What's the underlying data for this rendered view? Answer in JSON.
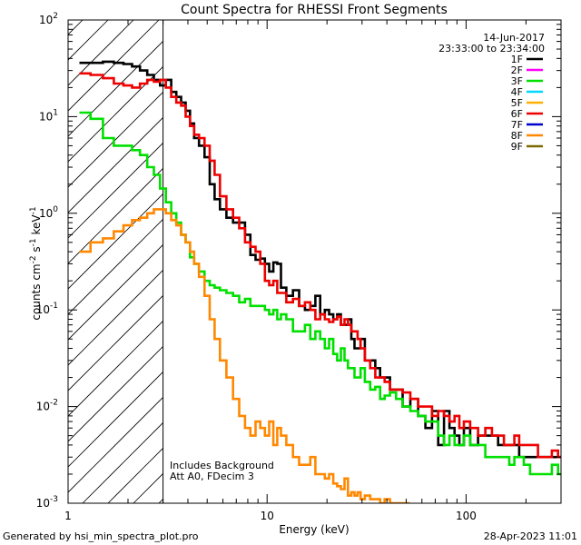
{
  "chart_data": {
    "type": "line",
    "title": "Count Spectra for RHESSI Front Segments",
    "xlabel": "Energy (keV)",
    "ylabel": "counts cm",
    "ylabel_sup1": "-2",
    "ylabel_mid": " s",
    "ylabel_sup2": "-1",
    "ylabel_end": " keV",
    "ylabel_sup3": "-1",
    "xscale": "log",
    "yscale": "log",
    "xlim": [
      1,
      300
    ],
    "ylim": [
      0.001,
      100
    ],
    "x_ticks": [
      {
        "v": 10,
        "label": "10"
      },
      {
        "v": 100,
        "label": "100"
      }
    ],
    "y_ticks": [
      {
        "v": 0.001,
        "base": "10",
        "exp": "-3"
      },
      {
        "v": 0.01,
        "base": "10",
        "exp": "-2"
      },
      {
        "v": 0.1,
        "base": "10",
        "exp": "-1"
      },
      {
        "v": 1,
        "base": "10",
        "exp": "0"
      },
      {
        "v": 10,
        "base": "10",
        "exp": "1"
      },
      {
        "v": 100,
        "base": "10",
        "exp": "2"
      }
    ],
    "x_corner_label": "1",
    "date": "14-Jun-2017",
    "time_range": "23:33:00 to 23:34:00",
    "note_line1": "Includes Background",
    "note_line2": "Att A0, FDecim 3",
    "shaded_below_keV": 3,
    "legend": [
      {
        "name": "1F",
        "color": "#000000"
      },
      {
        "name": "2F",
        "color": "#ff00ff"
      },
      {
        "name": "3F",
        "color": "#00e000"
      },
      {
        "name": "4F",
        "color": "#00d8ff"
      },
      {
        "name": "5F",
        "color": "#ffb000"
      },
      {
        "name": "6F",
        "color": "#ee0000"
      },
      {
        "name": "7F",
        "color": "#0000cc"
      },
      {
        "name": "8F",
        "color": "#ff8800"
      },
      {
        "name": "9F",
        "color": "#7a6a00"
      }
    ],
    "series": [
      {
        "name": "1F",
        "color": "#000000",
        "x": [
          1.2,
          1.4,
          1.6,
          1.8,
          2,
          2.2,
          2.4,
          2.6,
          2.8,
          3,
          3.2,
          3.4,
          3.6,
          3.8,
          4,
          4.2,
          4.4,
          4.7,
          5,
          5.3,
          5.6,
          6,
          6.5,
          7,
          7.5,
          8,
          8.5,
          9,
          9.5,
          10,
          10.5,
          11,
          11.5,
          12,
          13,
          14,
          15,
          16,
          17,
          18,
          19,
          20,
          21,
          22,
          23,
          24,
          25,
          26,
          27,
          28,
          29,
          30,
          32,
          34,
          36,
          38,
          40,
          43,
          46,
          50,
          55,
          60,
          65,
          70,
          75,
          80,
          85,
          90,
          95,
          100,
          110,
          120,
          130,
          140,
          150,
          160,
          170,
          180,
          190,
          200,
          220,
          240,
          260,
          280,
          300
        ],
        "y": [
          36,
          36,
          37,
          36,
          35,
          33,
          30,
          27,
          24,
          21,
          24,
          18,
          16,
          14,
          11.5,
          8.5,
          6,
          5,
          3.8,
          2,
          1.4,
          1.1,
          0.9,
          0.8,
          0.8,
          0.6,
          0.37,
          0.33,
          0.34,
          0.3,
          0.25,
          0.31,
          0.3,
          0.17,
          0.14,
          0.16,
          0.11,
          0.1,
          0.11,
          0.14,
          0.09,
          0.1,
          0.09,
          0.08,
          0.09,
          0.07,
          0.07,
          0.08,
          0.05,
          0.04,
          0.04,
          0.05,
          0.03,
          0.03,
          0.025,
          0.02,
          0.02,
          0.015,
          0.015,
          0.01,
          0.012,
          0.008,
          0.006,
          0.009,
          0.004,
          0.009,
          0.006,
          0.005,
          0.004,
          0.006,
          0.004,
          0.005,
          0.005,
          0.005,
          0.004,
          0.004,
          0.004,
          0.004,
          0.003,
          0.003,
          0.003,
          0.003,
          0.003,
          0.003,
          0.003
        ]
      },
      {
        "name": "3F",
        "color": "#00e000",
        "x": [
          1.2,
          1.4,
          1.6,
          1.8,
          2,
          2.2,
          2.4,
          2.6,
          2.8,
          3,
          3.2,
          3.4,
          3.6,
          3.8,
          4,
          4.2,
          4.4,
          4.7,
          5,
          5.3,
          5.6,
          6,
          6.5,
          7,
          7.5,
          8,
          8.5,
          9,
          9.5,
          10,
          10.5,
          11,
          11.5,
          12,
          13,
          14,
          15,
          16,
          17,
          18,
          19,
          20,
          21,
          22,
          23,
          24,
          25,
          26,
          27,
          28,
          29,
          30,
          32,
          34,
          36,
          38,
          40,
          43,
          46,
          50,
          55,
          60,
          65,
          70,
          75,
          80,
          85,
          90,
          95,
          100,
          110,
          120,
          130,
          140,
          150,
          160,
          170,
          180,
          190,
          200,
          220,
          240,
          260,
          280,
          300
        ],
        "y": [
          11,
          9.5,
          6,
          5,
          5,
          4.5,
          4,
          3,
          2.5,
          1.8,
          1.3,
          1.0,
          0.8,
          0.6,
          0.5,
          0.35,
          0.3,
          0.25,
          0.2,
          0.18,
          0.17,
          0.16,
          0.15,
          0.14,
          0.12,
          0.13,
          0.11,
          0.11,
          0.11,
          0.1,
          0.09,
          0.1,
          0.08,
          0.09,
          0.08,
          0.06,
          0.06,
          0.07,
          0.05,
          0.06,
          0.05,
          0.04,
          0.05,
          0.035,
          0.03,
          0.04,
          0.03,
          0.025,
          0.025,
          0.02,
          0.02,
          0.025,
          0.018,
          0.015,
          0.016,
          0.012,
          0.013,
          0.014,
          0.012,
          0.01,
          0.009,
          0.008,
          0.007,
          0.007,
          0.005,
          0.004,
          0.005,
          0.004,
          0.004,
          0.005,
          0.004,
          0.004,
          0.003,
          0.003,
          0.003,
          0.003,
          0.0025,
          0.003,
          0.003,
          0.0025,
          0.002,
          0.002,
          0.002,
          0.0025,
          0.002
        ]
      },
      {
        "name": "6F",
        "color": "#ee0000",
        "x": [
          1.2,
          1.4,
          1.6,
          1.8,
          2,
          2.2,
          2.4,
          2.6,
          2.8,
          3,
          3.2,
          3.4,
          3.6,
          3.8,
          4,
          4.2,
          4.4,
          4.7,
          5,
          5.3,
          5.6,
          6,
          6.5,
          7,
          7.5,
          8,
          8.5,
          9,
          9.5,
          10,
          10.5,
          11,
          11.5,
          12,
          13,
          14,
          15,
          16,
          17,
          18,
          19,
          20,
          21,
          22,
          23,
          24,
          25,
          26,
          27,
          28,
          29,
          30,
          32,
          34,
          36,
          38,
          40,
          43,
          46,
          50,
          55,
          60,
          65,
          70,
          75,
          80,
          85,
          90,
          95,
          100,
          110,
          120,
          130,
          140,
          150,
          160,
          170,
          180,
          190,
          200,
          220,
          240,
          260,
          280,
          300
        ],
        "y": [
          28,
          27,
          25,
          22,
          21,
          20,
          22,
          24,
          23,
          24,
          20,
          16,
          14,
          13,
          10,
          8,
          6.5,
          6,
          5,
          3.5,
          2.5,
          1.5,
          1.1,
          0.9,
          0.7,
          0.5,
          0.45,
          0.4,
          0.3,
          0.2,
          0.18,
          0.2,
          0.15,
          0.15,
          0.12,
          0.13,
          0.11,
          0.12,
          0.1,
          0.08,
          0.09,
          0.08,
          0.075,
          0.08,
          0.085,
          0.07,
          0.08,
          0.07,
          0.06,
          0.06,
          0.05,
          0.04,
          0.03,
          0.025,
          0.02,
          0.02,
          0.018,
          0.015,
          0.015,
          0.014,
          0.012,
          0.01,
          0.01,
          0.008,
          0.009,
          0.008,
          0.007,
          0.008,
          0.006,
          0.007,
          0.006,
          0.005,
          0.006,
          0.005,
          0.005,
          0.004,
          0.004,
          0.005,
          0.004,
          0.004,
          0.004,
          0.003,
          0.003,
          0.0035,
          0.003
        ]
      },
      {
        "name": "8F",
        "color": "#ff8800",
        "x": [
          1.2,
          1.4,
          1.6,
          1.8,
          2,
          2.2,
          2.4,
          2.6,
          2.8,
          3,
          3.2,
          3.4,
          3.6,
          3.8,
          4,
          4.2,
          4.4,
          4.7,
          5,
          5.3,
          5.6,
          6,
          6.5,
          7,
          7.5,
          8,
          8.5,
          9,
          9.5,
          10,
          10.5,
          11,
          11.5,
          12,
          13,
          14,
          15,
          16,
          17,
          18,
          19,
          20,
          21,
          22,
          23,
          24,
          25,
          26,
          27,
          28,
          29,
          30,
          32,
          34,
          36,
          38,
          40,
          43,
          46,
          50
        ],
        "y": [
          0.4,
          0.5,
          0.55,
          0.65,
          0.75,
          0.85,
          0.9,
          1.0,
          1.1,
          1.1,
          1.0,
          0.85,
          0.75,
          0.6,
          0.5,
          0.4,
          0.3,
          0.22,
          0.14,
          0.08,
          0.05,
          0.03,
          0.02,
          0.012,
          0.008,
          0.006,
          0.005,
          0.007,
          0.006,
          0.005,
          0.007,
          0.004,
          0.006,
          0.005,
          0.004,
          0.003,
          0.0025,
          0.0025,
          0.003,
          0.002,
          0.002,
          0.0018,
          0.002,
          0.0016,
          0.0015,
          0.0014,
          0.0018,
          0.0012,
          0.0013,
          0.0012,
          0.0013,
          0.0011,
          0.0012,
          0.0011,
          0.0011,
          0.001,
          0.0011,
          0.001,
          0.001,
          0.001
        ]
      }
    ]
  },
  "footer": {
    "left": "Generated by hsi_min_spectra_plot.pro",
    "right": "28-Apr-2023 11:01"
  }
}
